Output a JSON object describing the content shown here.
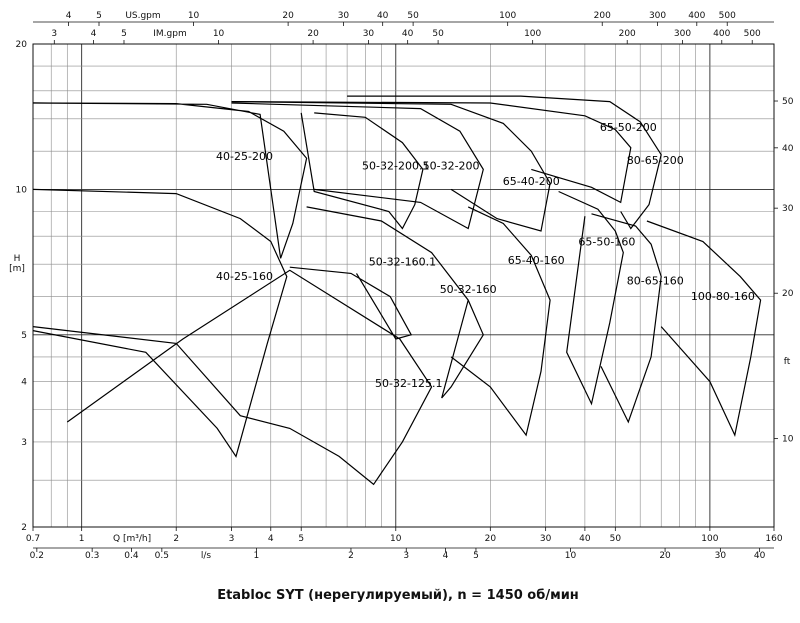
{
  "caption": "Etabloc SYT (нерегулируемый), n = 1450 об/мин",
  "chart_data": {
    "type": "line",
    "title": "Etabloc SYT (нерегулируемый), n = 1450 об/мин",
    "xscale": "log",
    "yscale": "log",
    "xlim_m3h": [
      0.7,
      160
    ],
    "ylim_m": [
      2,
      20
    ],
    "axes": {
      "q_m3h": {
        "label": "Q [m³/h]",
        "ticks": [
          0.7,
          1,
          2,
          3,
          4,
          5,
          10,
          20,
          30,
          40,
          50,
          100,
          160
        ]
      },
      "q_ls": {
        "label": "l/s",
        "ticks": [
          0.2,
          0.3,
          0.4,
          0.5,
          1,
          2,
          3,
          4,
          5,
          10,
          20,
          30,
          40
        ]
      },
      "us_gpm": {
        "label": "US.gpm",
        "ticks": [
          4,
          5,
          10,
          20,
          30,
          40,
          50,
          100,
          200,
          300,
          400,
          500
        ]
      },
      "im_gpm": {
        "label": "IM.gpm",
        "ticks": [
          3,
          4,
          5,
          10,
          20,
          30,
          40,
          50,
          100,
          200,
          300,
          400,
          500
        ]
      },
      "h_m": {
        "label": "H\n[m]",
        "ticks": [
          2,
          3,
          4,
          5,
          10,
          20
        ]
      },
      "h_ft": {
        "label": "ft",
        "ticks": [
          10,
          20,
          30,
          40,
          50
        ]
      }
    },
    "series": [
      {
        "name": "40-25-200",
        "label_at": [
          3.3,
          11.5
        ],
        "points": [
          [
            0.7,
            15.1
          ],
          [
            2,
            15.05
          ],
          [
            3.4,
            14.5
          ],
          [
            4.4,
            13.2
          ],
          [
            5.2,
            11.6
          ],
          [
            4.7,
            8.5
          ],
          [
            4.3,
            7.2
          ],
          [
            3.7,
            14.3
          ],
          [
            2.5,
            15.0
          ],
          [
            0.7,
            15.1
          ]
        ]
      },
      {
        "name": "40-25-160",
        "label_at": [
          3.3,
          6.5
        ],
        "points": [
          [
            0.7,
            10.0
          ],
          [
            2,
            9.8
          ],
          [
            3.2,
            8.7
          ],
          [
            4,
            7.8
          ],
          [
            4.5,
            6.6
          ],
          [
            3.9,
            4.8
          ],
          [
            3.1,
            2.8
          ],
          [
            2.7,
            3.2
          ],
          [
            1.6,
            4.6
          ],
          [
            0.7,
            5.1
          ]
        ]
      },
      {
        "name": "50-32-125.1",
        "label_at": [
          11,
          3.9
        ],
        "points": [
          [
            0.7,
            5.2
          ],
          [
            2,
            4.8
          ],
          [
            3.2,
            3.4
          ],
          [
            4.6,
            3.2
          ],
          [
            6.6,
            2.8
          ],
          [
            8.5,
            2.45
          ],
          [
            10.5,
            3.0
          ],
          [
            13,
            3.9
          ],
          [
            10.3,
            4.9
          ],
          [
            4.6,
            6.8
          ],
          [
            2.1,
            4.9
          ],
          [
            0.9,
            3.3
          ]
        ]
      },
      {
        "name": "50-32-160.1",
        "label_at": [
          10.5,
          6.95
        ],
        "points": [
          [
            4.6,
            6.9
          ],
          [
            7.2,
            6.7
          ],
          [
            9.6,
            6.0
          ],
          [
            11.2,
            5.0
          ],
          [
            10.0,
            4.9
          ],
          [
            7.5,
            6.7
          ]
        ]
      },
      {
        "name": "50-32-200.1",
        "label_at": [
          10,
          11.0
        ],
        "points": [
          [
            5.5,
            14.4
          ],
          [
            8,
            14.1
          ],
          [
            10.5,
            12.5
          ],
          [
            12.2,
            11.0
          ],
          [
            11.5,
            9.3
          ],
          [
            10.5,
            8.3
          ],
          [
            9.5,
            9.0
          ],
          [
            5.5,
            9.9
          ],
          [
            5.0,
            14.4
          ]
        ]
      },
      {
        "name": "50-32-160",
        "label_at": [
          17,
          6.1
        ],
        "points": [
          [
            5.2,
            9.2
          ],
          [
            9,
            8.6
          ],
          [
            13,
            7.4
          ],
          [
            17,
            5.9
          ],
          [
            19,
            5.0
          ],
          [
            15,
            3.9
          ],
          [
            14,
            3.7
          ],
          [
            17,
            5.9
          ]
        ]
      },
      {
        "name": "50-32-200",
        "label_at": [
          15,
          11.0
        ],
        "points": [
          [
            3,
            15.1
          ],
          [
            12,
            14.7
          ],
          [
            16,
            13.2
          ],
          [
            19,
            11.0
          ],
          [
            17,
            8.3
          ],
          [
            12,
            9.4
          ],
          [
            5.5,
            10.0
          ]
        ]
      },
      {
        "name": "65-40-160",
        "label_at": [
          28,
          7.0
        ],
        "points": [
          [
            17,
            9.2
          ],
          [
            22,
            8.5
          ],
          [
            27,
            7.3
          ],
          [
            31,
            5.9
          ],
          [
            29,
            4.2
          ],
          [
            26,
            3.1
          ],
          [
            20,
            3.9
          ],
          [
            15,
            4.5
          ]
        ]
      },
      {
        "name": "65-40-200",
        "label_at": [
          27,
          10.2
        ],
        "points": [
          [
            3,
            15.2
          ],
          [
            15,
            15.0
          ],
          [
            22,
            13.7
          ],
          [
            27,
            12.0
          ],
          [
            31,
            10.3
          ],
          [
            29,
            8.2
          ],
          [
            21,
            8.7
          ],
          [
            15,
            10.0
          ]
        ]
      },
      {
        "name": "65-50-160",
        "label_at": [
          47,
          7.65
        ],
        "points": [
          [
            33,
            9.9
          ],
          [
            44,
            9.1
          ],
          [
            50,
            8.2
          ],
          [
            53,
            7.4
          ],
          [
            48,
            5.3
          ],
          [
            42,
            3.6
          ],
          [
            35,
            4.6
          ],
          [
            40,
            8.8
          ]
        ]
      },
      {
        "name": "65-50-200",
        "label_at": [
          55,
          13.2
        ],
        "points": [
          [
            3,
            15.2
          ],
          [
            20,
            15.1
          ],
          [
            40,
            14.2
          ],
          [
            50,
            13.3
          ],
          [
            56,
            12.2
          ],
          [
            52,
            9.4
          ],
          [
            42,
            10.1
          ],
          [
            27,
            11.0
          ]
        ]
      },
      {
        "name": "80-65-160",
        "label_at": [
          67,
          6.35
        ],
        "points": [
          [
            42,
            8.9
          ],
          [
            58,
            8.4
          ],
          [
            65,
            7.7
          ],
          [
            70,
            6.6
          ],
          [
            65,
            4.5
          ],
          [
            55,
            3.3
          ],
          [
            45,
            4.3
          ]
        ]
      },
      {
        "name": "80-65-200",
        "label_at": [
          67,
          11.3
        ],
        "points": [
          [
            7,
            15.6
          ],
          [
            25,
            15.6
          ],
          [
            48,
            15.2
          ],
          [
            60,
            13.8
          ],
          [
            70,
            11.8
          ],
          [
            64,
            9.3
          ],
          [
            56,
            8.3
          ],
          [
            52,
            9.0
          ]
        ]
      },
      {
        "name": "100-80-160",
        "label_at": [
          110,
          5.9
        ],
        "points": [
          [
            63,
            8.6
          ],
          [
            95,
            7.8
          ],
          [
            125,
            6.6
          ],
          [
            145,
            5.9
          ],
          [
            135,
            4.5
          ],
          [
            120,
            3.1
          ],
          [
            100,
            4.0
          ],
          [
            70,
            5.2
          ]
        ]
      }
    ]
  }
}
